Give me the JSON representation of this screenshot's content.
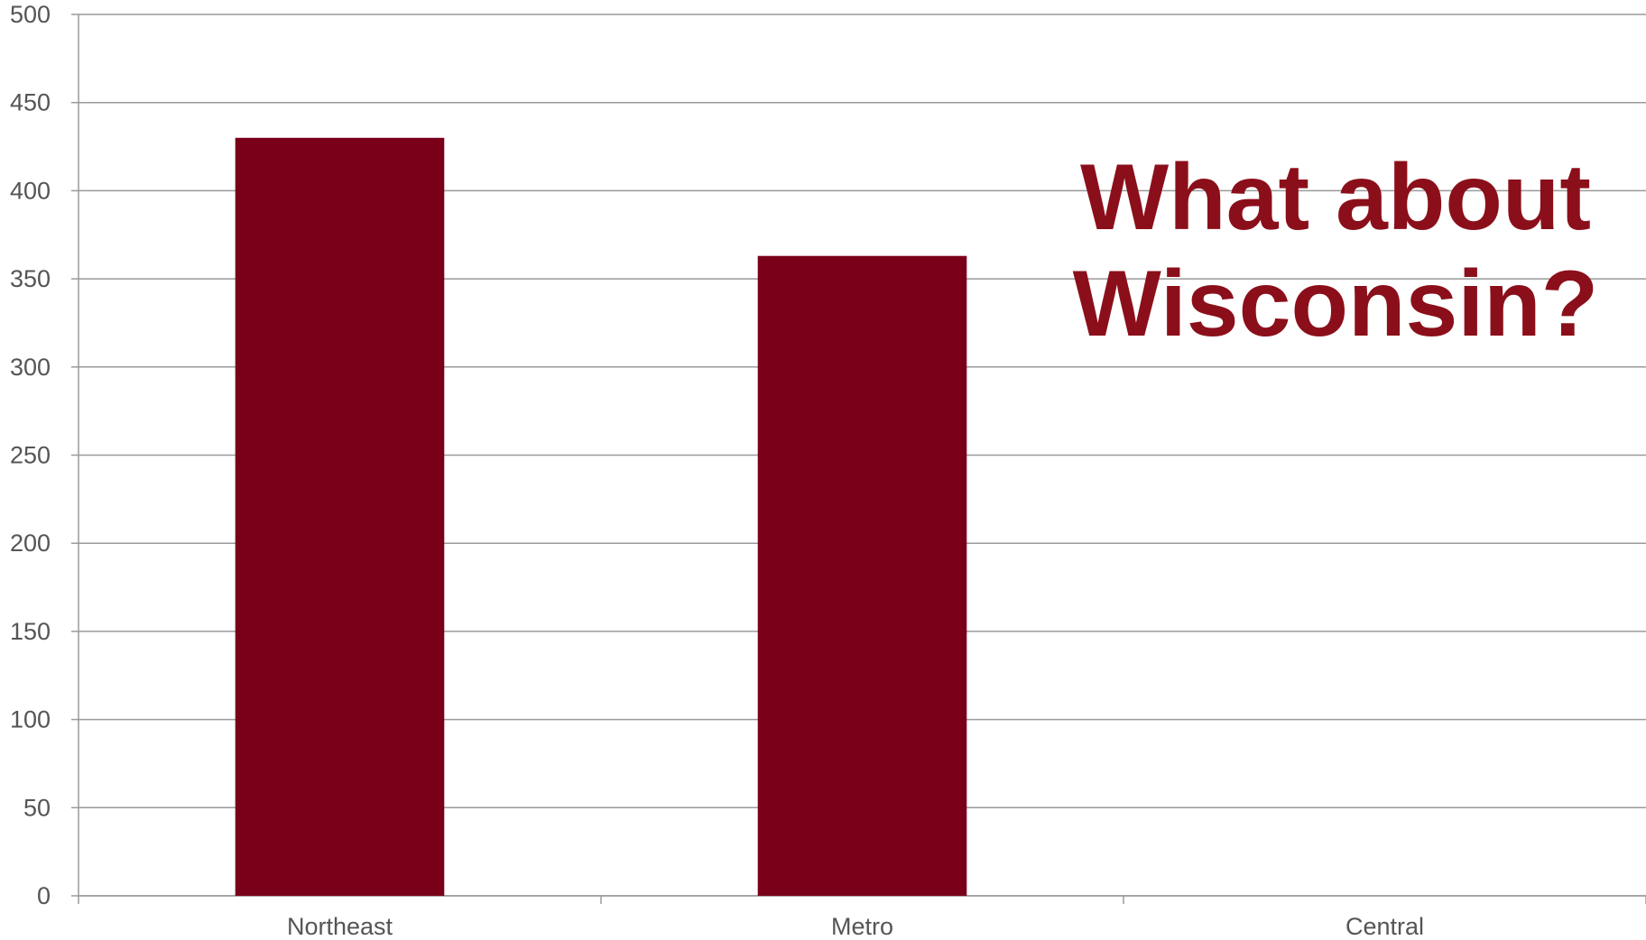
{
  "chart_data": {
    "type": "bar",
    "categories": [
      "Northeast",
      "Metro",
      "Central"
    ],
    "values": [
      430,
      363,
      null
    ],
    "ylim": [
      0,
      500
    ],
    "yticks": [
      0,
      50,
      100,
      150,
      200,
      250,
      300,
      350,
      400,
      450,
      500
    ],
    "grid": true,
    "legend": "none",
    "bar_color": "#7a0019",
    "annotation": [
      "What about",
      "Wisconsin?"
    ],
    "annotation_color": "#8b0f1a"
  }
}
